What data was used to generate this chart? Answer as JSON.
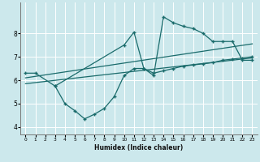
{
  "xlabel": "Humidex (Indice chaleur)",
  "bg_color": "#cce8ec",
  "line_color": "#1a6b6b",
  "grid_color": "#ffffff",
  "xlim": [
    -0.5,
    23.5
  ],
  "ylim": [
    3.7,
    9.3
  ],
  "xticks": [
    0,
    1,
    2,
    3,
    4,
    5,
    6,
    7,
    8,
    9,
    10,
    11,
    12,
    13,
    14,
    15,
    16,
    17,
    18,
    19,
    20,
    21,
    22,
    23
  ],
  "yticks": [
    4,
    5,
    6,
    7,
    8
  ],
  "series1_x": [
    0,
    1,
    3,
    10,
    11,
    12,
    13,
    14,
    15,
    16,
    17,
    18,
    19,
    20,
    21,
    22,
    23
  ],
  "series1_y": [
    6.3,
    6.3,
    5.75,
    7.5,
    8.05,
    6.5,
    6.2,
    8.7,
    8.45,
    8.3,
    8.2,
    8.0,
    7.65,
    7.65,
    7.65,
    6.85,
    6.85
  ],
  "series2_x": [
    3,
    4,
    5,
    6,
    7,
    8,
    9,
    10,
    11,
    12,
    13,
    14,
    15,
    16,
    17,
    18,
    19,
    20,
    21,
    22,
    23
  ],
  "series2_y": [
    5.75,
    5.0,
    4.7,
    4.35,
    4.55,
    4.8,
    5.3,
    6.2,
    6.5,
    6.5,
    6.3,
    6.4,
    6.5,
    6.6,
    6.65,
    6.7,
    6.75,
    6.85,
    6.9,
    6.95,
    7.0
  ],
  "series3_x": [
    0,
    23
  ],
  "series3_y": [
    6.1,
    7.55
  ],
  "series4_x": [
    0,
    23
  ],
  "series4_y": [
    5.85,
    6.95
  ]
}
